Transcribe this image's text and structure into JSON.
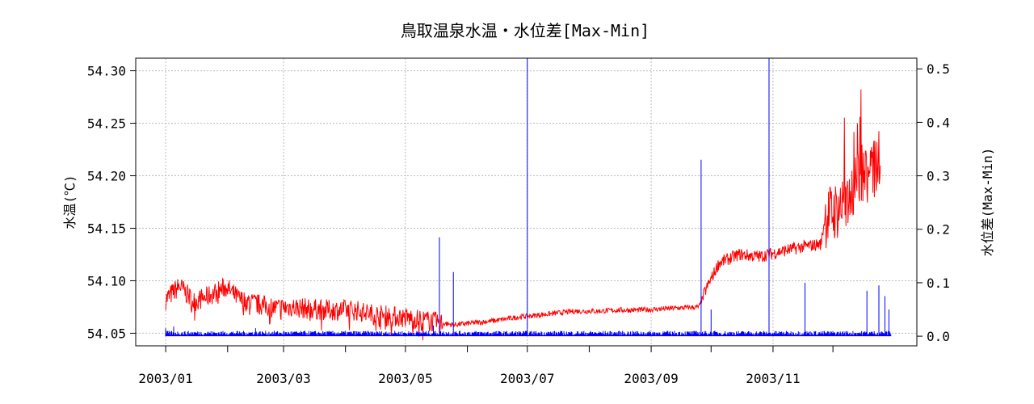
{
  "chart_data": {
    "type": "line",
    "title": "鳥取温泉水温・水位差[Max-Min]",
    "ylabel_left": "水温(℃)",
    "ylabel_right": "水位差(Max-Min)",
    "xlabel": "",
    "x_ticks": [
      "2003/01",
      "2003/03",
      "2003/05",
      "2003/07",
      "2003/09",
      "2003/11"
    ],
    "x_tick_dates": [
      "2003-01-01",
      "2003-03-01",
      "2003-05-01",
      "2003-07-01",
      "2003-09-01",
      "2003-11-01"
    ],
    "x_minor_tick_dates": [
      "2003-02-01",
      "2003-04-01",
      "2003-06-01",
      "2003-08-01",
      "2003-10-01",
      "2003-12-01"
    ],
    "xlim": [
      "2002-12-17",
      "2004-01-12"
    ],
    "y_left_ticks": [
      "54.05",
      "54.10",
      "54.15",
      "54.20",
      "54.25",
      "54.30"
    ],
    "y_left_lim": [
      54.038,
      54.312
    ],
    "y_right_ticks": [
      "0.0",
      "0.1",
      "0.2",
      "0.3",
      "0.4",
      "0.5"
    ],
    "y_right_lim": [
      -0.018,
      0.52
    ],
    "grid": true,
    "series": [
      {
        "axis": "left",
        "color": "#ff0000",
        "points": [
          [
            "2003-01-01",
            54.082
          ],
          [
            "2003-01-08",
            54.095
          ],
          [
            "2003-01-15",
            54.08
          ],
          [
            "2003-01-22",
            54.085
          ],
          [
            "2003-01-31",
            54.094
          ],
          [
            "2003-02-07",
            54.082
          ],
          [
            "2003-02-15",
            54.078
          ],
          [
            "2003-02-25",
            54.074
          ],
          [
            "2003-03-05",
            54.075
          ],
          [
            "2003-03-15",
            54.073
          ],
          [
            "2003-03-25",
            54.072
          ],
          [
            "2003-04-05",
            54.072
          ],
          [
            "2003-04-15",
            54.068
          ],
          [
            "2003-04-25",
            54.066
          ],
          [
            "2003-05-05",
            54.064
          ],
          [
            "2003-05-15",
            54.061
          ],
          [
            "2003-05-25",
            54.058
          ],
          [
            "2003-06-05",
            54.06
          ],
          [
            "2003-06-15",
            54.062
          ],
          [
            "2003-06-25",
            54.065
          ],
          [
            "2003-07-05",
            54.067
          ],
          [
            "2003-07-15",
            54.069
          ],
          [
            "2003-07-25",
            54.071
          ],
          [
            "2003-08-05",
            54.071
          ],
          [
            "2003-08-15",
            54.072
          ],
          [
            "2003-08-25",
            54.072
          ],
          [
            "2003-09-05",
            54.073
          ],
          [
            "2003-09-15",
            54.074
          ],
          [
            "2003-09-25",
            54.075
          ],
          [
            "2003-09-28",
            54.09
          ],
          [
            "2003-10-05",
            54.117
          ],
          [
            "2003-10-15",
            54.125
          ],
          [
            "2003-10-25",
            54.123
          ],
          [
            "2003-11-05",
            54.128
          ],
          [
            "2003-11-15",
            54.132
          ],
          [
            "2003-11-25",
            54.135
          ],
          [
            "2003-11-27",
            54.16
          ],
          [
            "2003-12-05",
            54.17
          ],
          [
            "2003-12-10",
            54.185
          ],
          [
            "2003-12-15",
            54.2
          ],
          [
            "2003-12-20",
            54.205
          ],
          [
            "2003-12-25",
            54.21
          ]
        ]
      },
      {
        "axis": "right",
        "color": "#0000ff",
        "baseline": 0.0,
        "spikes": [
          [
            "2003-01-01",
            0.015
          ],
          [
            "2003-01-05",
            0.018
          ],
          [
            "2003-02-15",
            0.015
          ],
          [
            "2003-05-15",
            0.02
          ],
          [
            "2003-05-18",
            0.185
          ],
          [
            "2003-05-25",
            0.12
          ],
          [
            "2003-07-01",
            0.52
          ],
          [
            "2003-09-26",
            0.33
          ],
          [
            "2003-10-01",
            0.05
          ],
          [
            "2003-10-30",
            0.52
          ],
          [
            "2003-11-17",
            0.1
          ],
          [
            "2003-12-18",
            0.085
          ],
          [
            "2003-12-24",
            0.095
          ],
          [
            "2003-12-27",
            0.075
          ],
          [
            "2003-12-29",
            0.05
          ]
        ]
      }
    ]
  }
}
